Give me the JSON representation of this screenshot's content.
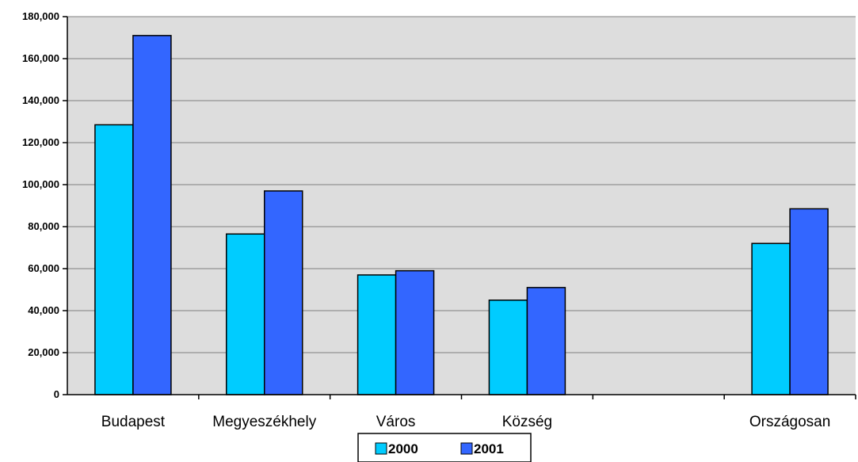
{
  "chart_data": {
    "type": "bar",
    "title": "",
    "xlabel": "",
    "ylabel": "",
    "categories": [
      "Budapest",
      "Megyeszékhely",
      "Város",
      "Község",
      "",
      "Országosan"
    ],
    "series": [
      {
        "name": "2000",
        "color": "#00ccff",
        "values": [
          128500,
          76500,
          57000,
          45000,
          null,
          72000
        ]
      },
      {
        "name": "2001",
        "color": "#3366ff",
        "values": [
          171000,
          97000,
          59000,
          51000,
          null,
          88500
        ]
      }
    ],
    "ylim": [
      0,
      180000
    ],
    "yticks": [
      0,
      20000,
      40000,
      60000,
      80000,
      100000,
      120000,
      140000,
      160000,
      180000
    ],
    "ytick_labels": [
      "0",
      "20,000",
      "40,000",
      "60,000",
      "80,000",
      "100,000",
      "120,000",
      "140,000",
      "160,000",
      "180,000"
    ],
    "grid": true,
    "plot_background": "#dddddd",
    "legend": {
      "position": "bottom-center",
      "entries": [
        "2000",
        "2001"
      ]
    }
  }
}
